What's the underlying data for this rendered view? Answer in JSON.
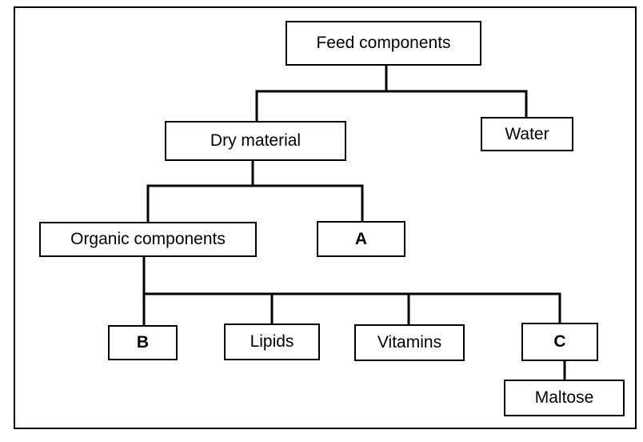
{
  "diagram": {
    "nodes": {
      "feed": "Feed components",
      "dry": "Dry material",
      "water": "Water",
      "organic": "Organic components",
      "a": "A",
      "b": "B",
      "lipids": "Lipids",
      "vitamins": "Vitamins",
      "c": "C",
      "maltose": "Maltose"
    },
    "edges": [
      [
        "feed",
        "dry"
      ],
      [
        "feed",
        "water"
      ],
      [
        "dry",
        "organic"
      ],
      [
        "dry",
        "a"
      ],
      [
        "organic",
        "b"
      ],
      [
        "organic",
        "lipids"
      ],
      [
        "organic",
        "vitamins"
      ],
      [
        "organic",
        "c"
      ],
      [
        "c",
        "maltose"
      ]
    ]
  }
}
